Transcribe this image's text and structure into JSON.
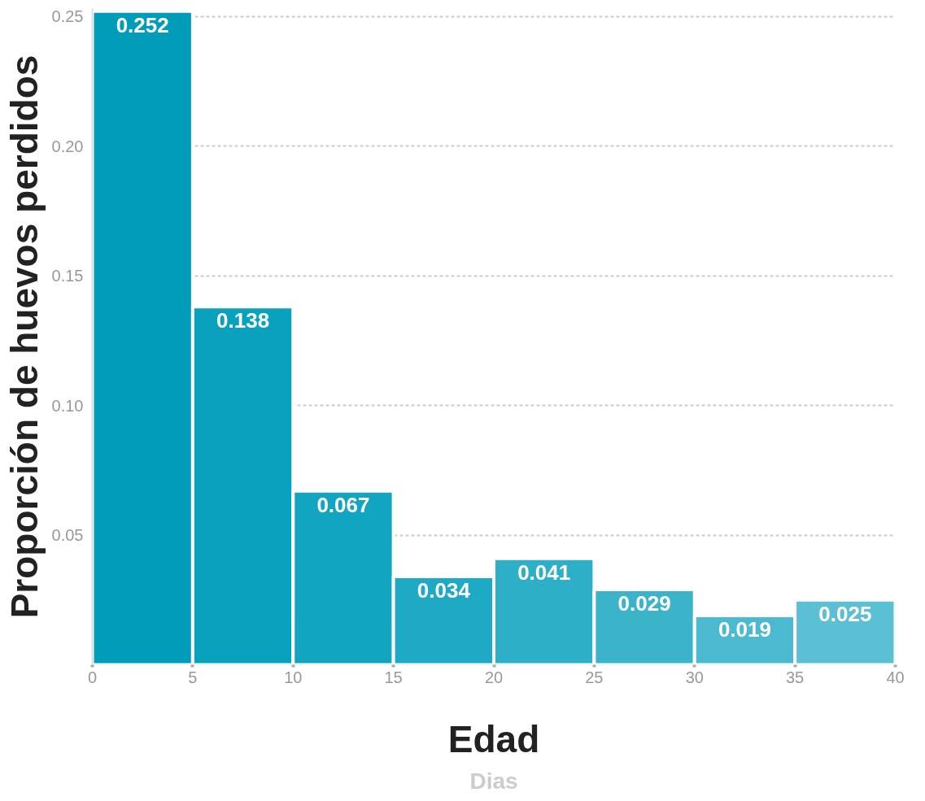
{
  "chart_data": {
    "type": "histogram",
    "xlabel": "Edad",
    "ylabel": "Proporción de huevos perdidos",
    "annotations": [
      "Dias"
    ],
    "bins": [
      0,
      5,
      10,
      15,
      20,
      25,
      30,
      35,
      40
    ],
    "values": [
      0.252,
      0.138,
      0.067,
      0.034,
      0.041,
      0.029,
      0.019,
      0.025
    ],
    "colors": [
      "#009cba",
      "#08a1be",
      "#12a5c1",
      "#1ea9c4",
      "#2dafc7",
      "#3bb4ca",
      "#4bbad0",
      "#5bc0d4"
    ],
    "data_labels": true,
    "xlim": [
      0,
      40
    ],
    "xticks": [
      0,
      5,
      10,
      15,
      20,
      25,
      30,
      35,
      40
    ],
    "ylim": [
      0,
      0.253
    ],
    "yticks": [
      {
        "value": 0.05,
        "label": "0.05"
      },
      {
        "value": 0.1,
        "label": "0.10"
      },
      {
        "value": 0.15,
        "label": "0.15"
      },
      {
        "value": 0.2,
        "label": "0.20"
      },
      {
        "value": 0.25,
        "label": "0.25"
      }
    ],
    "grid": "y"
  }
}
